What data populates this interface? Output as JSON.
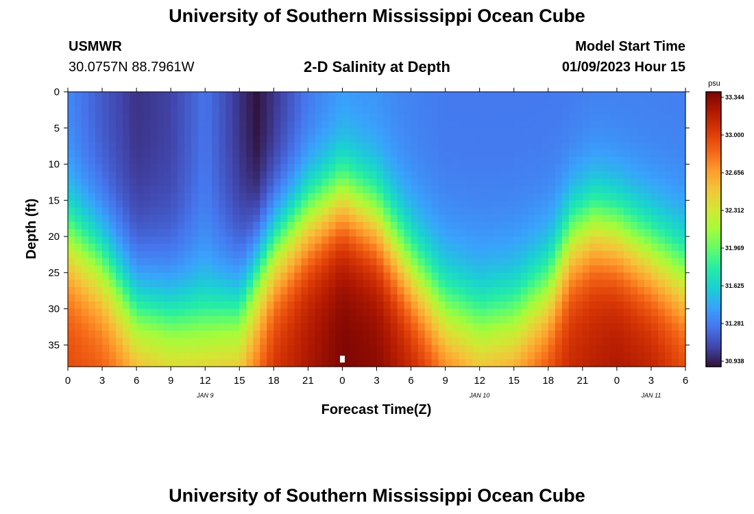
{
  "header": {
    "title": "University of Southern Mississippi Ocean Cube",
    "station_name": "USMWR",
    "coordinates": "30.0757N  88.7961W",
    "chart_title": "2-D Salinity at Depth",
    "model_start_label": "Model Start Time",
    "model_start_value": "01/09/2023 Hour 15"
  },
  "footer": {
    "title": "University of Southern Mississippi Ocean Cube"
  },
  "chart_data": {
    "type": "heatmap",
    "title": "2-D Salinity at Depth",
    "xlabel": "Forecast Time(Z)",
    "ylabel": "Depth (ft)",
    "x_range_hours": [
      0,
      54
    ],
    "x_tick_labels": [
      "0",
      "3",
      "6",
      "9",
      "12",
      "15",
      "18",
      "21",
      "0",
      "3",
      "6",
      "9",
      "12",
      "15",
      "18",
      "21",
      "0",
      "3",
      "6"
    ],
    "date_labels": [
      {
        "label": "JAN 9",
        "hour": 12
      },
      {
        "label": "JAN 10",
        "hour": 36
      },
      {
        "label": "JAN 11",
        "hour": 51
      }
    ],
    "y_range_ft": [
      0,
      38
    ],
    "y_ticks": [
      0,
      5,
      10,
      15,
      20,
      25,
      30,
      35
    ],
    "colorbar": {
      "unit": "psu",
      "min": 30.938,
      "max": 33.344,
      "tick_labels": [
        "33.344",
        "33.000",
        "32.656",
        "32.312",
        "31.969",
        "31.625",
        "31.281",
        "30.938"
      ],
      "colors": [
        "#30123b",
        "#4145ab",
        "#4675ed",
        "#39a2fc",
        "#1bcfd4",
        "#24eca6",
        "#61fc6c",
        "#a4fc3b",
        "#d1e834",
        "#f3c63a",
        "#fe9b2d",
        "#f36315",
        "#d93806",
        "#b11901",
        "#7a0403"
      ]
    },
    "timeline": {
      "times": [
        0,
        3,
        6,
        9,
        12,
        15,
        16.5,
        18,
        21,
        24,
        27,
        30,
        33,
        36,
        39,
        42,
        44,
        46,
        48,
        51,
        54
      ],
      "halocline_depth_ft": [
        22,
        26,
        33,
        34,
        34,
        33,
        28,
        24,
        19,
        16,
        19,
        26,
        32,
        34,
        33,
        29,
        22,
        20,
        21,
        24,
        27
      ],
      "surface_salinity_psu": [
        31.35,
        31.18,
        31.05,
        31.1,
        31.28,
        31.05,
        30.94,
        31.05,
        31.28,
        31.4,
        31.38,
        31.33,
        31.3,
        31.3,
        31.3,
        31.3,
        31.3,
        31.32,
        31.32,
        31.32,
        31.32
      ],
      "bottom_salinity_psu": [
        32.95,
        32.9,
        32.8,
        32.7,
        32.7,
        32.72,
        32.85,
        33.05,
        33.2,
        33.34,
        33.3,
        33.15,
        32.95,
        32.8,
        32.85,
        33.0,
        33.1,
        33.15,
        33.2,
        33.15,
        33.0
      ]
    }
  }
}
